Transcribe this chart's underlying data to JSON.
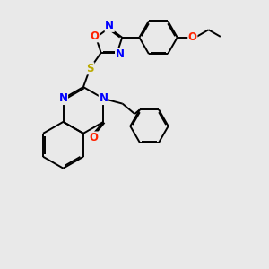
{
  "bg_color": "#e9e9e9",
  "bond_color": "#000000",
  "bond_width": 1.4,
  "dbo": 0.055,
  "atom_colors": {
    "N": "#0000ff",
    "O": "#ff2200",
    "S": "#bbaa00",
    "C": "#000000"
  },
  "font_size": 8.5,
  "fig_bg": "#e9e9e9"
}
